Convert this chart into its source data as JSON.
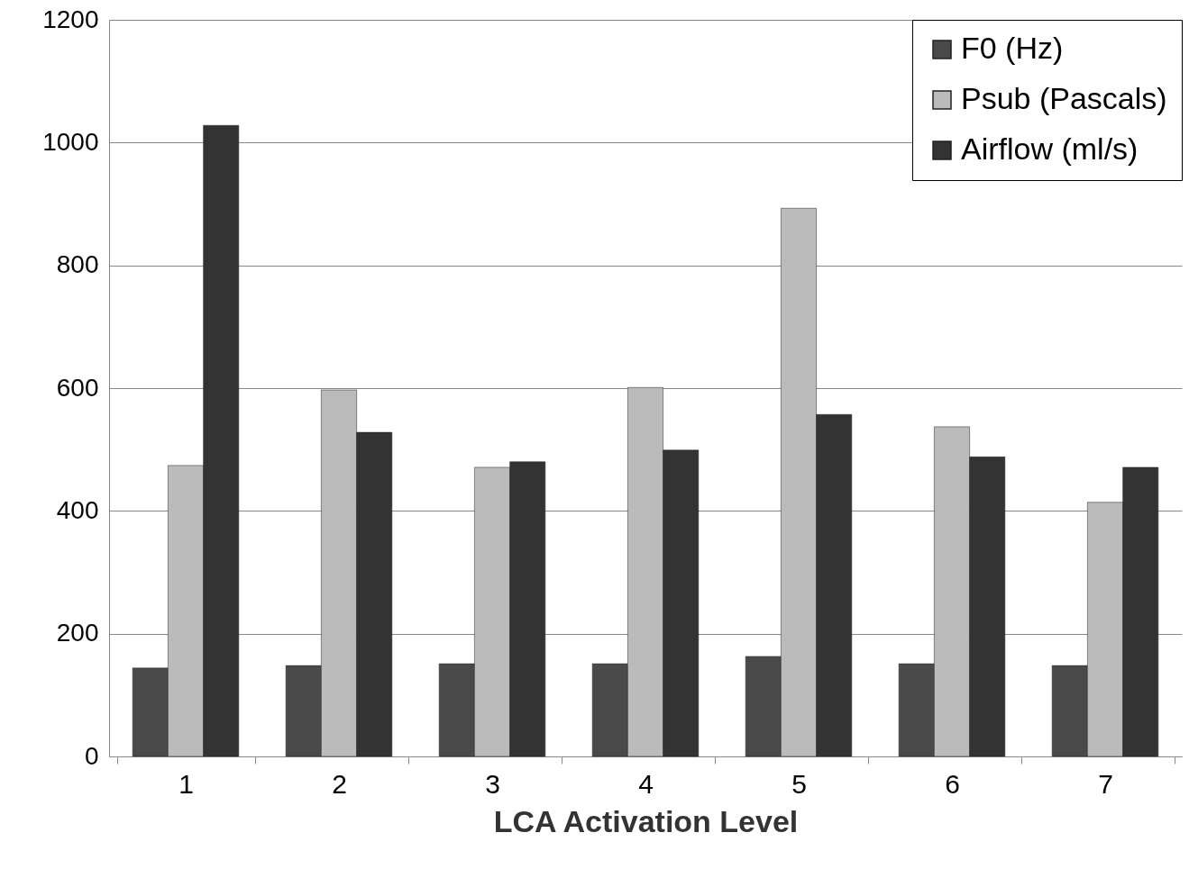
{
  "chart_data": {
    "type": "bar",
    "xlabel": "LCA Activation Level",
    "categories": [
      "1",
      "2",
      "3",
      "4",
      "5",
      "6",
      "7"
    ],
    "series": [
      {
        "name": "F0 (Hz)",
        "color": "#4a4a4a",
        "values": [
          144,
          148,
          151,
          151,
          163,
          151,
          148
        ]
      },
      {
        "name": "Psub (Pascals)",
        "color": "#bbbbbb",
        "values": [
          474,
          597,
          471,
          601,
          893,
          537,
          414
        ]
      },
      {
        "name": "Airflow (ml/s)",
        "color": "#333333",
        "values": [
          1028,
          528,
          480,
          499,
          557,
          488,
          471
        ]
      }
    ],
    "ylim": [
      0,
      1200
    ],
    "yticks": [
      0,
      200,
      400,
      600,
      800,
      1000,
      1200
    ],
    "grid": "y",
    "legend": "top right"
  }
}
